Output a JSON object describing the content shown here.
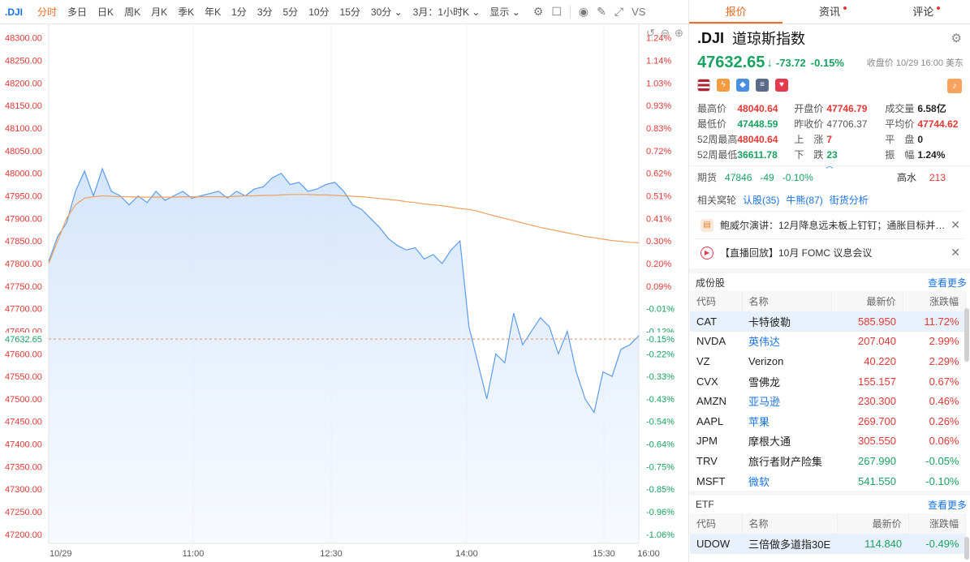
{
  "toolbar": {
    "symbol": ".DJI",
    "periods": [
      "分时",
      "多日",
      "日K",
      "周K",
      "月K",
      "季K",
      "年K",
      "1分",
      "3分",
      "5分",
      "10分",
      "15分",
      "30分 ⌄"
    ],
    "active_period": "分时",
    "range": "3月：1小时K ⌄",
    "display": "显示 ⌄",
    "icons": [
      "settings-icon",
      "checkbox-icon",
      "camera-icon",
      "pen-icon",
      "fullscreen-icon",
      "vs-icon"
    ],
    "vs_label": "VS"
  },
  "chart_data": {
    "type": "line",
    "title": "",
    "x_ticks": [
      "10/29",
      "11:00",
      "12:30",
      "14:00",
      "15:30",
      "16:00"
    ],
    "y_ticks": [
      48300,
      48250,
      48200,
      48150,
      48100,
      48050,
      48000,
      47950,
      47900,
      47850,
      47800,
      47750,
      47700,
      47650,
      47600,
      47550,
      47500,
      47450,
      47400,
      47350,
      47300,
      47250,
      47200
    ],
    "y_tick_labels": [
      "48300.00",
      "48250.00",
      "48200.00",
      "48150.00",
      "48100.00",
      "48050.00",
      "48000.00",
      "47950.00",
      "47900.00",
      "47850.00",
      "47800.00",
      "47750.00",
      "47700.00",
      "47650.00",
      "47600.00",
      "47550.00",
      "47500.00",
      "47450.00",
      "47400.00",
      "47350.00",
      "47300.00",
      "47250.00",
      "47200.00"
    ],
    "pct_ticks": [
      "1.24%",
      "1.14%",
      "1.03%",
      "0.93%",
      "0.83%",
      "0.72%",
      "0.62%",
      "0.51%",
      "0.41%",
      "0.30%",
      "0.20%",
      "0.09%",
      "-0.01%",
      "-0.12%",
      "-0.22%",
      "-0.33%",
      "-0.43%",
      "-0.54%",
      "-0.64%",
      "-0.75%",
      "-0.85%",
      "-0.96%",
      "-1.06%"
    ],
    "ylim": [
      47180,
      48330
    ],
    "current_value": 47632.65,
    "current_label": "47632.65",
    "current_pct": "-0.15%",
    "series": [
      {
        "values": [
          47805,
          47860,
          47890,
          47960,
          48005,
          47950,
          48010,
          47960,
          47950,
          47930,
          47950,
          47935,
          47960,
          47940,
          47950,
          47960,
          47945,
          47950,
          47955,
          47960,
          47945,
          47960,
          47950,
          47965,
          47970,
          47990,
          48000,
          47975,
          47980,
          47960,
          47965,
          47975,
          47980,
          47960,
          47930,
          47920,
          47900,
          47880,
          47855,
          47840,
          47830,
          47835,
          47810,
          47820,
          47800,
          47830,
          47850,
          47660,
          47580,
          47500,
          47600,
          47580,
          47690,
          47620,
          47650,
          47680,
          47660,
          47600,
          47650,
          47560,
          47500,
          47470,
          47560,
          47550,
          47610,
          47620,
          47640
        ]
      },
      {
        "values": [
          47800,
          47850,
          47900,
          47930,
          47945,
          47948,
          47950,
          47949,
          47948,
          47948,
          47947,
          47947,
          47947,
          47947,
          47947,
          47948,
          47948,
          47948,
          47948,
          47948,
          47948,
          47949,
          47950,
          47950,
          47951,
          47951,
          47952,
          47953,
          47953,
          47953,
          47952,
          47952,
          47951,
          47950,
          47949,
          47948,
          47946,
          47944,
          47942,
          47940,
          47937,
          47935,
          47932,
          47930,
          47928,
          47925,
          47922,
          47920,
          47916,
          47910,
          47905,
          47900,
          47895,
          47890,
          47885,
          47880,
          47876,
          47872,
          47868,
          47864,
          47860,
          47857,
          47854,
          47851,
          47849,
          47847,
          47846
        ]
      }
    ]
  },
  "panel": {
    "tabs": [
      {
        "label": "报价",
        "dot": false
      },
      {
        "label": "资讯",
        "dot": true
      },
      {
        "label": "评论",
        "dot": true
      }
    ],
    "code": ".DJI",
    "name": "道琼斯指数",
    "price": "47632.65",
    "change": "-73.72",
    "change_pct": "-0.15%",
    "close_info": "收盘价 10/29 16:00 美东",
    "stats": {
      "high_label": "最高价",
      "high": "48040.64",
      "open_label": "开盘价",
      "open": "47746.79",
      "volume_label": "成交量",
      "volume": "6.58亿",
      "low_label": "最低价",
      "low": "47448.59",
      "prev_label": "昨收价",
      "prev": "47706.37",
      "avg_label": "平均价",
      "avg": "47744.62",
      "w52h_label": "52周最高",
      "w52h": "48040.64",
      "up_label": "上　涨",
      "up": "7",
      "flat_label": "平　盘",
      "flat": "0",
      "w52l_label": "52周最低",
      "w52l": "36611.78",
      "down_label": "下　跌",
      "down": "23",
      "amp_label": "振　幅",
      "amp": "1.24%"
    },
    "futures": {
      "label": "期货",
      "price": "47846",
      "chg": "-49",
      "pct": "-0.10%",
      "hw_label": "高水",
      "hw": "213"
    },
    "related": {
      "label": "相关窝轮",
      "links": [
        "认股(35)",
        "牛熊(87)",
        "街货分析"
      ]
    },
    "news": [
      {
        "text": "鲍威尔演讲：12月降息远未板上钉钉；通胀目标并…"
      },
      {
        "text": "【直播回放】10月 FOMC 议息会议"
      }
    ],
    "components": {
      "title": "成份股",
      "more": "查看更多",
      "headers": [
        "代码",
        "名称",
        "最新价",
        "涨跌幅"
      ],
      "rows": [
        {
          "code": "CAT",
          "name": "卡特彼勒",
          "price": "585.950",
          "pct": "11.72%",
          "dir": "up",
          "link": false,
          "hl": true
        },
        {
          "code": "NVDA",
          "name": "英伟达",
          "price": "207.040",
          "pct": "2.99%",
          "dir": "up",
          "link": true,
          "hl": false
        },
        {
          "code": "VZ",
          "name": "Verizon",
          "price": "40.220",
          "pct": "2.29%",
          "dir": "up",
          "link": false,
          "hl": false
        },
        {
          "code": "CVX",
          "name": "雪佛龙",
          "price": "155.157",
          "pct": "0.67%",
          "dir": "up",
          "link": false,
          "hl": false
        },
        {
          "code": "AMZN",
          "name": "亚马逊",
          "price": "230.300",
          "pct": "0.46%",
          "dir": "up",
          "link": true,
          "hl": false
        },
        {
          "code": "AAPL",
          "name": "苹果",
          "price": "269.700",
          "pct": "0.26%",
          "dir": "up",
          "link": true,
          "hl": false
        },
        {
          "code": "JPM",
          "name": "摩根大通",
          "price": "305.550",
          "pct": "0.06%",
          "dir": "up",
          "link": false,
          "hl": false
        },
        {
          "code": "TRV",
          "name": "旅行者财产险集",
          "price": "267.990",
          "pct": "-0.05%",
          "dir": "dn",
          "link": false,
          "hl": false
        },
        {
          "code": "MSFT",
          "name": "微软",
          "price": "541.550",
          "pct": "-0.10%",
          "dir": "dn",
          "link": true,
          "hl": false
        }
      ]
    },
    "etf": {
      "title": "ETF",
      "more": "查看更多",
      "headers": [
        "代码",
        "名称",
        "最新价",
        "涨跌幅"
      ],
      "rows": [
        {
          "code": "UDOW",
          "name": "三倍做多道指30E",
          "price": "114.840",
          "pct": "-0.49%",
          "dir": "dn",
          "link": false,
          "hl": true
        }
      ]
    }
  }
}
